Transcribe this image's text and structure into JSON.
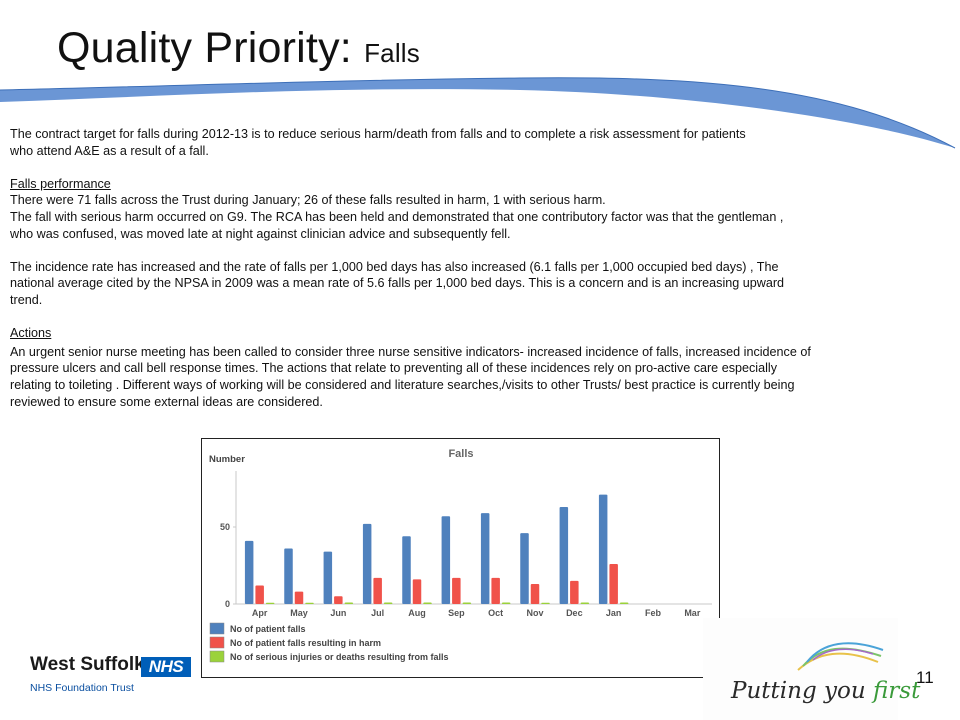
{
  "slide": {
    "title_main": "Quality Priority:",
    "title_sub": "Falls",
    "page_number": "11"
  },
  "body": {
    "para1_line1": "The contract target for falls during 2012-13 is to reduce serious harm/death from falls and to complete a risk assessment for patients",
    "para1_line2": "who attend A&E as a result of a fall.",
    "perf_heading": "Falls performance",
    "perf_line1": "There were 71 falls across the Trust during  January; 26 of these falls resulted in harm, 1 with serious harm.",
    "perf_line2": "The fall with serious harm occurred on G9. The  RCA has been held and  demonstrated that  one contributory factor  was that the gentleman ,",
    "perf_line3": "who was confused, was moved late at night against  clinician advice and subsequently  fell.",
    "incidence_line1": "The incidence rate has increased and the rate of falls per 1,000 bed days has also increased (6.1 falls per 1,000 occupied bed days) , The",
    "incidence_line2": "national average  cited by the NPSA in 2009 was a mean rate of 5.6 falls per 1,000 bed days. This is a concern and is an increasing upward",
    "incidence_line3": "trend.",
    "actions_heading": "Actions",
    "actions_line1": "An urgent  senior nurse meeting has been called to consider three nurse sensitive indicators- increased incidence of falls, increased incidence of",
    "actions_line2": "pressure ulcers and call bell response times.  The actions that relate to preventing all of these incidences rely on pro-active care especially",
    "actions_line3": "relating to toileting . Different ways of working will be considered and literature searches,/visits to other Trusts/ best practice is currently being",
    "actions_line4": "reviewed to ensure some external ideas are considered."
  },
  "logos": {
    "west_suffolk": "West Suffolk",
    "nhs": "NHS",
    "foundation_trust": "NHS Foundation Trust",
    "putting_you": "Putting you ",
    "first": "first"
  },
  "colors": {
    "series_blue": "#4f81bd",
    "series_red": "#f0524a",
    "series_green": "#9bd23a",
    "swoosh": "#5b8bd0"
  },
  "chart_data": {
    "type": "bar",
    "title": "Falls",
    "ylabel": "Number",
    "xlabel": "",
    "categories": [
      "Apr",
      "May",
      "Jun",
      "Jul",
      "Aug",
      "Sep",
      "Oct",
      "Nov",
      "Dec",
      "Jan",
      "Feb",
      "Mar"
    ],
    "yticks": [
      0,
      50
    ],
    "ylim": [
      0,
      80
    ],
    "grid": false,
    "legend_position": "bottom-left",
    "series": [
      {
        "name": "No of patient falls",
        "color": "#4f81bd",
        "values": [
          41,
          36,
          34,
          52,
          44,
          57,
          59,
          46,
          63,
          71,
          null,
          null
        ]
      },
      {
        "name": "No of patient falls resulting in harm",
        "color": "#f0524a",
        "values": [
          12,
          8,
          5,
          17,
          16,
          17,
          17,
          13,
          15,
          26,
          null,
          null
        ]
      },
      {
        "name": "No of serious injuries or deaths resulting from falls",
        "color": "#9bd23a",
        "values": [
          0,
          0,
          1,
          1,
          1,
          1,
          1,
          0,
          1,
          1,
          null,
          null
        ]
      }
    ]
  }
}
